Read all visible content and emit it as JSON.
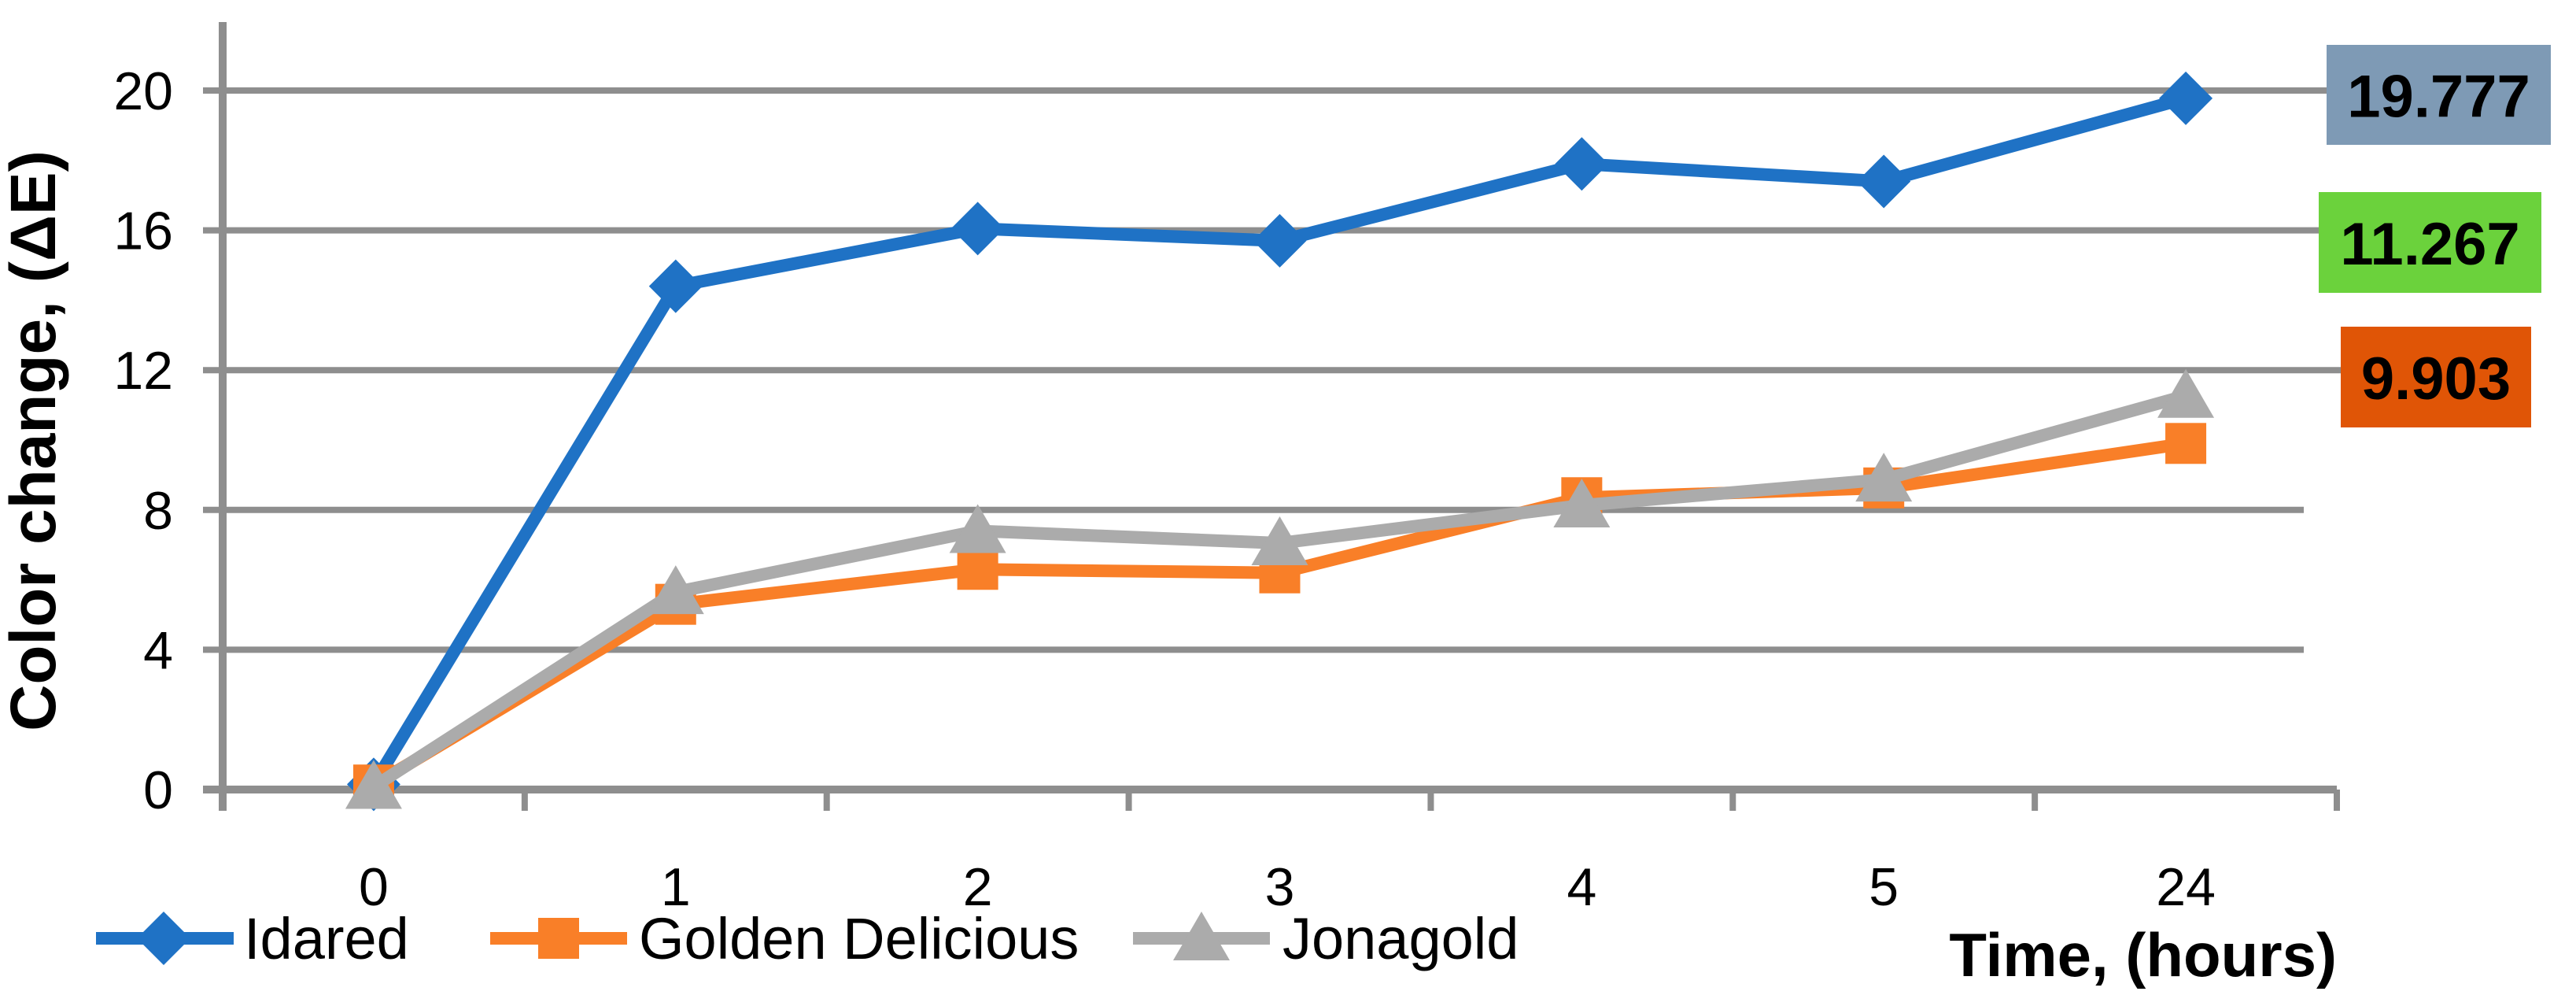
{
  "chart_data": {
    "type": "line",
    "title": "",
    "xlabel": "Time, (hours)",
    "ylabel": "Color change, (ΔE)",
    "categories": [
      "0",
      "1",
      "2",
      "3",
      "4",
      "5",
      "24"
    ],
    "y_ticks": [
      0,
      4,
      8,
      12,
      16,
      20
    ],
    "ylim": [
      0,
      21.5
    ],
    "grid": "horizontal-only",
    "legend_position": "bottom-left",
    "axis_color": "#8E8E8E",
    "series": [
      {
        "name": "Idared",
        "color": "#1F72C5",
        "marker": "diamond",
        "values": [
          0.15,
          14.4,
          16.05,
          15.7,
          17.9,
          17.4,
          19.777
        ]
      },
      {
        "name": "Golden Delicious",
        "color": "#F97F28",
        "marker": "square",
        "values": [
          0.13,
          5.3,
          6.3,
          6.2,
          8.35,
          8.63,
          9.903
        ]
      },
      {
        "name": "Jonagold",
        "color": "#ABABAB",
        "marker": "triangle",
        "values": [
          0.08,
          5.65,
          7.4,
          7.05,
          8.13,
          8.87,
          11.267
        ]
      }
    ],
    "end_labels": [
      {
        "text": "19.777",
        "bg": "#7E9AB5",
        "series": "Idared"
      },
      {
        "text": "11.267",
        "bg": "#6BD23C",
        "series": "Jonagold"
      },
      {
        "text": "9.903",
        "bg": "#E05506",
        "series": "Golden Delicious"
      }
    ]
  }
}
